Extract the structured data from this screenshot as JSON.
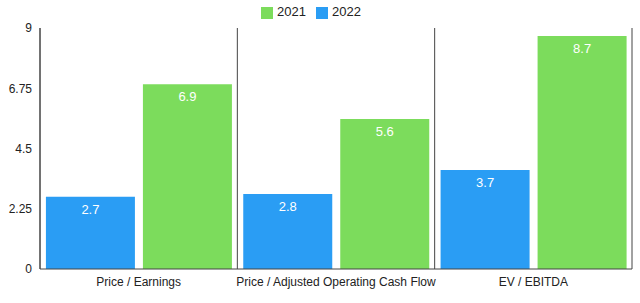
{
  "chart_data": {
    "type": "bar",
    "categories": [
      "Price / Earnings",
      "Price / Adjusted Operating Cash Flow",
      "EV / EBITDA"
    ],
    "series": [
      {
        "name": "2022",
        "color": "#2a9df4",
        "values": [
          2.7,
          2.8,
          3.7
        ]
      },
      {
        "name": "2021",
        "color": "#7cdc5c",
        "values": [
          6.9,
          5.6,
          8.7
        ]
      }
    ],
    "ylim": [
      0,
      9
    ],
    "yticks": [
      0,
      2.25,
      4.5,
      6.75,
      9
    ],
    "data_labels": true,
    "legend": "top"
  }
}
